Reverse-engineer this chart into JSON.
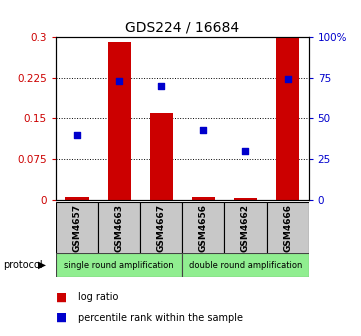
{
  "title": "GDS224 / 16684",
  "samples": [
    "GSM4657",
    "GSM4663",
    "GSM4667",
    "GSM4656",
    "GSM4662",
    "GSM4666"
  ],
  "log_ratios": [
    0.005,
    0.29,
    0.16,
    0.005,
    0.004,
    0.302
  ],
  "percentiles": [
    40,
    73,
    70,
    43,
    30,
    74
  ],
  "ylim_left": [
    0,
    0.3
  ],
  "ylim_right": [
    0,
    100
  ],
  "yticks_left": [
    0,
    0.075,
    0.15,
    0.225,
    0.3
  ],
  "ytick_labels_left": [
    "0",
    "0.075",
    "0.15",
    "0.225",
    "0.3"
  ],
  "yticks_right": [
    0,
    25,
    50,
    75,
    100
  ],
  "ytick_labels_right": [
    "0",
    "25",
    "50",
    "75",
    "100%"
  ],
  "bar_color": "#CC0000",
  "dot_color": "#0000CC",
  "bar_width": 0.55,
  "title_fontsize": 10,
  "label_fontsize": 6.5,
  "tick_fontsize": 7.5,
  "legend_log": "log ratio",
  "legend_pct": "percentile rank within the sample",
  "background_color": "#ffffff",
  "left_color": "#CC0000",
  "right_color": "#0000CC",
  "proto1_label": "single round amplification",
  "proto2_label": "double round amplification",
  "proto_color": "#90EE90",
  "sample_box_color": "#C8C8C8"
}
